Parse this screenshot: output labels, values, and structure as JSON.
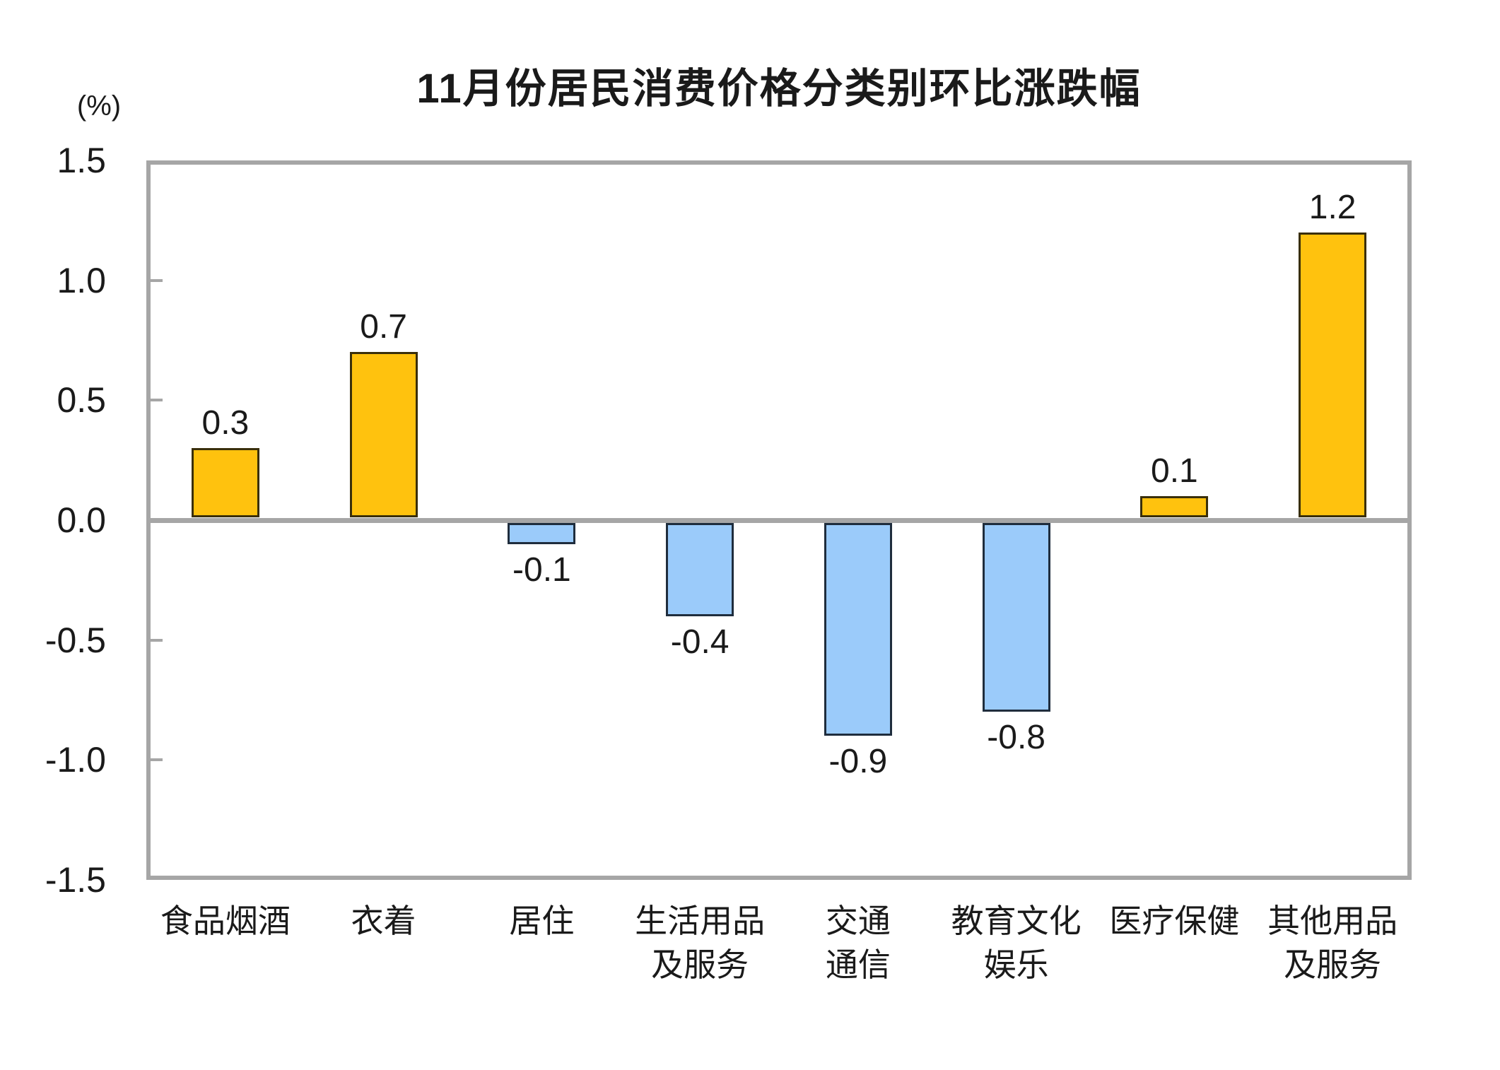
{
  "chart_data": {
    "type": "bar",
    "title": "11月份居民消费价格分类别环比涨跌幅",
    "unit_label": "(%)",
    "categories": [
      [
        "食品烟酒"
      ],
      [
        "衣着"
      ],
      [
        "居住"
      ],
      [
        "生活用品",
        "及服务"
      ],
      [
        "交通",
        "通信"
      ],
      [
        "教育文化",
        "娱乐"
      ],
      [
        "医疗保健"
      ],
      [
        "其他用品",
        "及服务"
      ]
    ],
    "values": [
      0.3,
      0.7,
      -0.1,
      -0.4,
      -0.9,
      -0.8,
      0.1,
      1.2
    ],
    "data_labels": [
      "0.3",
      "0.7",
      "-0.1",
      "-0.4",
      "-0.9",
      "-0.8",
      "0.1",
      "1.2"
    ],
    "ylim": [
      -1.5,
      1.5
    ],
    "yticks": [
      1.5,
      1.0,
      0.5,
      0.0,
      -0.5,
      -1.0,
      -1.5
    ],
    "ytick_labels": [
      "1.5",
      "1.0",
      "0.5",
      "0.0",
      "-0.5",
      "-1.0",
      "-1.5"
    ],
    "grid": false,
    "legend": "none",
    "colors": {
      "positive_fill": "#FFC20E",
      "positive_border": "#3A2F0B",
      "negative_fill": "#9BCBFA",
      "negative_border": "#1F2D3D",
      "axis_gray": "#A6A6A6",
      "text": "#1A1A1A"
    }
  }
}
